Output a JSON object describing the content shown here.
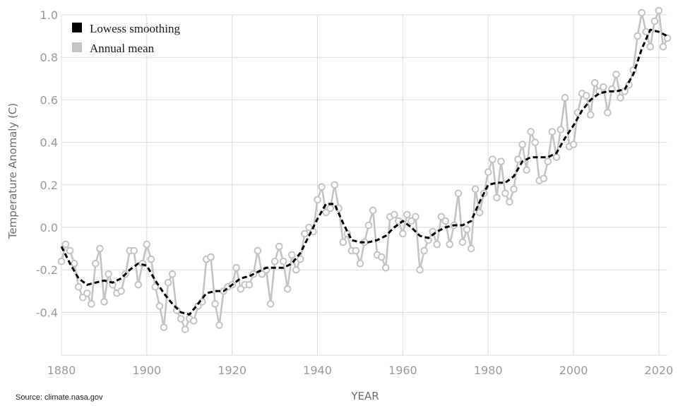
{
  "chart_data": {
    "type": "line",
    "title": "",
    "xlabel": "YEAR",
    "ylabel": "Temperature Anomaly (C)",
    "xlim": [
      1880,
      2022
    ],
    "ylim": [
      -0.55,
      1.05
    ],
    "x_ticks": [
      1880,
      1900,
      1920,
      1940,
      1960,
      1980,
      2000,
      2020
    ],
    "y_ticks": [
      1.0,
      0.8,
      0.6,
      0.4,
      0.2,
      0.0,
      -0.2,
      -0.4
    ],
    "y_tick_labels": [
      "1.0",
      "0.8",
      "0.6",
      "0.4",
      "0.2",
      "0.0",
      "-0.2",
      "-0.4"
    ],
    "grid": true,
    "legend_position": "top-left",
    "series": [
      {
        "name": "Annual mean",
        "style": "line-with-hollow-markers",
        "color": "#c4c4c4",
        "x": [
          1880,
          1881,
          1882,
          1883,
          1884,
          1885,
          1886,
          1887,
          1888,
          1889,
          1890,
          1891,
          1892,
          1893,
          1894,
          1895,
          1896,
          1897,
          1898,
          1899,
          1900,
          1901,
          1902,
          1903,
          1904,
          1905,
          1906,
          1907,
          1908,
          1909,
          1910,
          1911,
          1912,
          1913,
          1914,
          1915,
          1916,
          1917,
          1918,
          1919,
          1920,
          1921,
          1922,
          1923,
          1924,
          1925,
          1926,
          1927,
          1928,
          1929,
          1930,
          1931,
          1932,
          1933,
          1934,
          1935,
          1936,
          1937,
          1938,
          1939,
          1940,
          1941,
          1942,
          1943,
          1944,
          1945,
          1946,
          1947,
          1948,
          1949,
          1950,
          1951,
          1952,
          1953,
          1954,
          1955,
          1956,
          1957,
          1958,
          1959,
          1960,
          1961,
          1962,
          1963,
          1964,
          1965,
          1966,
          1967,
          1968,
          1969,
          1970,
          1971,
          1972,
          1973,
          1974,
          1975,
          1976,
          1977,
          1978,
          1979,
          1980,
          1981,
          1982,
          1983,
          1984,
          1985,
          1986,
          1987,
          1988,
          1989,
          1990,
          1991,
          1992,
          1993,
          1994,
          1995,
          1996,
          1997,
          1998,
          1999,
          2000,
          2001,
          2002,
          2003,
          2004,
          2005,
          2006,
          2007,
          2008,
          2009,
          2010,
          2011,
          2012,
          2013,
          2014,
          2015,
          2016,
          2017,
          2018,
          2019,
          2020,
          2021,
          2022
        ],
        "values": [
          -0.16,
          -0.08,
          -0.11,
          -0.17,
          -0.28,
          -0.33,
          -0.31,
          -0.36,
          -0.17,
          -0.1,
          -0.35,
          -0.22,
          -0.27,
          -0.31,
          -0.3,
          -0.22,
          -0.11,
          -0.11,
          -0.27,
          -0.17,
          -0.08,
          -0.15,
          -0.28,
          -0.37,
          -0.47,
          -0.26,
          -0.22,
          -0.39,
          -0.43,
          -0.48,
          -0.43,
          -0.44,
          -0.37,
          -0.35,
          -0.15,
          -0.14,
          -0.36,
          -0.46,
          -0.3,
          -0.28,
          -0.27,
          -0.19,
          -0.29,
          -0.27,
          -0.27,
          -0.22,
          -0.11,
          -0.22,
          -0.2,
          -0.36,
          -0.16,
          -0.09,
          -0.16,
          -0.29,
          -0.13,
          -0.2,
          -0.15,
          -0.03,
          0.0,
          -0.02,
          0.13,
          0.19,
          0.07,
          0.09,
          0.2,
          0.09,
          -0.07,
          -0.03,
          -0.11,
          -0.11,
          -0.17,
          -0.07,
          0.01,
          0.08,
          -0.13,
          -0.14,
          -0.19,
          0.05,
          0.06,
          0.03,
          -0.03,
          0.06,
          0.03,
          0.05,
          -0.2,
          -0.11,
          -0.06,
          -0.02,
          -0.08,
          0.05,
          0.03,
          -0.08,
          0.01,
          0.16,
          -0.07,
          -0.01,
          -0.1,
          0.18,
          0.07,
          0.16,
          0.26,
          0.32,
          0.14,
          0.31,
          0.16,
          0.12,
          0.18,
          0.32,
          0.39,
          0.27,
          0.45,
          0.4,
          0.22,
          0.23,
          0.31,
          0.45,
          0.33,
          0.46,
          0.61,
          0.38,
          0.39,
          0.54,
          0.63,
          0.62,
          0.53,
          0.68,
          0.64,
          0.66,
          0.54,
          0.65,
          0.72,
          0.61,
          0.64,
          0.67,
          0.74,
          0.9,
          1.01,
          0.92,
          0.85,
          0.97,
          1.02,
          0.85,
          0.89
        ]
      },
      {
        "name": "Lowess smoothing",
        "style": "dashed-line",
        "color": "#000000",
        "x": [
          1880,
          1882,
          1884,
          1886,
          1888,
          1890,
          1892,
          1894,
          1896,
          1898,
          1900,
          1902,
          1904,
          1906,
          1908,
          1910,
          1912,
          1914,
          1916,
          1918,
          1920,
          1922,
          1924,
          1926,
          1928,
          1930,
          1932,
          1934,
          1936,
          1938,
          1940,
          1942,
          1944,
          1946,
          1948,
          1950,
          1952,
          1954,
          1956,
          1958,
          1960,
          1962,
          1964,
          1966,
          1968,
          1970,
          1972,
          1974,
          1976,
          1978,
          1980,
          1982,
          1984,
          1986,
          1988,
          1990,
          1992,
          1994,
          1996,
          1998,
          2000,
          2002,
          2004,
          2006,
          2008,
          2010,
          2012,
          2014,
          2016,
          2018,
          2020,
          2022
        ],
        "values": [
          -0.09,
          -0.17,
          -0.24,
          -0.27,
          -0.26,
          -0.25,
          -0.26,
          -0.24,
          -0.2,
          -0.17,
          -0.18,
          -0.25,
          -0.31,
          -0.36,
          -0.4,
          -0.41,
          -0.36,
          -0.31,
          -0.3,
          -0.3,
          -0.27,
          -0.24,
          -0.23,
          -0.21,
          -0.19,
          -0.19,
          -0.19,
          -0.17,
          -0.12,
          -0.04,
          0.04,
          0.11,
          0.11,
          0.02,
          -0.06,
          -0.07,
          -0.07,
          -0.06,
          -0.04,
          0.0,
          0.03,
          0.0,
          -0.04,
          -0.05,
          -0.02,
          0.0,
          0.01,
          0.01,
          0.03,
          0.12,
          0.2,
          0.21,
          0.21,
          0.24,
          0.31,
          0.33,
          0.33,
          0.33,
          0.35,
          0.42,
          0.48,
          0.55,
          0.6,
          0.63,
          0.64,
          0.64,
          0.65,
          0.72,
          0.84,
          0.93,
          0.92,
          0.9
        ]
      }
    ]
  },
  "source_text": "Source: climate.nasa.gov",
  "colors": {
    "grid": "#dcdcdc",
    "annual_line": "#c4c4c4",
    "lowess_line": "#000000",
    "tick_text": "#9a9a9a",
    "axis_title_text": "#6e6e6e"
  }
}
